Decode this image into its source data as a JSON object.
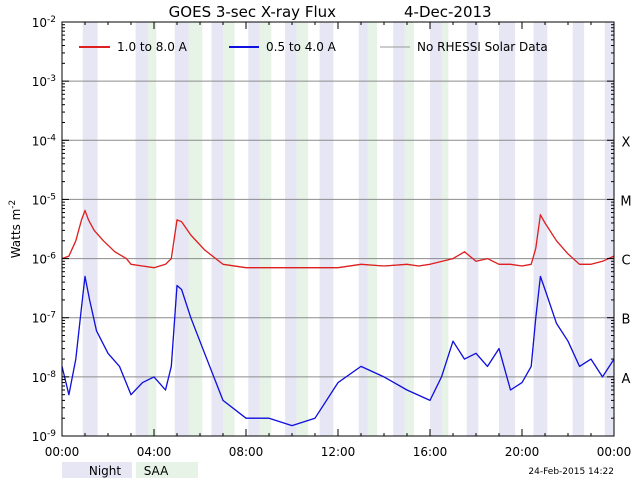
{
  "chart_data": {
    "type": "line",
    "title": "GOES 3-sec X-ray Flux",
    "date": "4-Dec-2013",
    "ylabel": "Watts m",
    "ylabel_sup": "-2",
    "y_scale": "log",
    "ylim": [
      1e-09,
      0.01
    ],
    "y_tick_labels": [
      {
        "base": "10",
        "exp": "-2"
      },
      {
        "base": "10",
        "exp": "-3"
      },
      {
        "base": "10",
        "exp": "-4"
      },
      {
        "base": "10",
        "exp": "-5"
      },
      {
        "base": "10",
        "exp": "-6"
      },
      {
        "base": "10",
        "exp": "-7"
      },
      {
        "base": "10",
        "exp": "-8"
      },
      {
        "base": "10",
        "exp": "-9"
      }
    ],
    "x_tick_labels": [
      "00:00",
      "04:00",
      "08:00",
      "12:00",
      "16:00",
      "20:00",
      "00:00"
    ],
    "xlim_hours": [
      0,
      24
    ],
    "class_labels": [
      {
        "label": "X",
        "flux": 0.0001
      },
      {
        "label": "M",
        "flux": 1e-05
      },
      {
        "label": "C",
        "flux": 1e-06
      },
      {
        "label": "B",
        "flux": 1e-07
      },
      {
        "label": "A",
        "flux": 1e-08
      }
    ],
    "grid": "horizontal at each decade",
    "legend_position": "top",
    "legend": [
      {
        "name": "1.0 to 8.0 A",
        "color": "#e02020"
      },
      {
        "name": "0.5 to 4.0 A",
        "color": "#1010e0"
      },
      {
        "name": "No RHESSI Solar Data",
        "color": "#999999"
      }
    ],
    "shading_legend": [
      {
        "name": "Night",
        "color": "#e6e6f5"
      },
      {
        "name": "SAA",
        "color": "#e6f3e6"
      }
    ],
    "night_intervals_hours": [
      [
        0.9,
        1.55
      ],
      [
        3.2,
        3.75
      ],
      [
        4.9,
        5.5
      ],
      [
        6.5,
        7.0
      ],
      [
        8.1,
        8.6
      ],
      [
        9.7,
        10.2
      ],
      [
        11.2,
        11.8
      ],
      [
        12.9,
        13.3
      ],
      [
        14.4,
        14.9
      ],
      [
        16.0,
        16.5
      ],
      [
        17.6,
        18.1
      ],
      [
        19.0,
        19.7
      ],
      [
        20.5,
        21.1
      ],
      [
        22.2,
        22.7
      ],
      [
        23.6,
        24.0
      ]
    ],
    "saa_intervals_hours": [
      [
        3.75,
        4.1
      ],
      [
        5.5,
        6.1
      ],
      [
        7.0,
        7.5
      ],
      [
        8.6,
        9.1
      ],
      [
        10.2,
        10.7
      ],
      [
        13.3,
        13.7
      ],
      [
        14.9,
        15.3
      ],
      [
        16.5,
        16.8
      ]
    ],
    "series": [
      {
        "name": "1.0 to 8.0 A",
        "color": "#e02020",
        "x_hours": [
          0.0,
          0.3,
          0.6,
          0.85,
          1.0,
          1.15,
          1.4,
          1.8,
          2.3,
          2.8,
          3.0,
          3.5,
          4.0,
          4.5,
          4.75,
          5.0,
          5.2,
          5.6,
          6.2,
          7.0,
          8.0,
          9.0,
          10.0,
          11.0,
          12.0,
          13.0,
          14.0,
          15.0,
          15.5,
          16.0,
          17.0,
          17.5,
          18.0,
          18.5,
          19.0,
          19.5,
          20.0,
          20.4,
          20.6,
          20.8,
          21.0,
          21.5,
          22.0,
          22.5,
          23.0,
          23.5,
          24.0
        ],
        "y_flux": [
          1e-06,
          1.1e-06,
          2e-06,
          4.5e-06,
          6.5e-06,
          4.5e-06,
          3e-06,
          2e-06,
          1.3e-06,
          1e-06,
          8e-07,
          7.5e-07,
          7e-07,
          8e-07,
          1e-06,
          4.5e-06,
          4.2e-06,
          2.5e-06,
          1.4e-06,
          8e-07,
          7e-07,
          7e-07,
          7e-07,
          7e-07,
          7e-07,
          8e-07,
          7.5e-07,
          8e-07,
          7.5e-07,
          8e-07,
          1e-06,
          1.3e-06,
          9e-07,
          1e-06,
          8e-07,
          8e-07,
          7.5e-07,
          8e-07,
          1.5e-06,
          5.5e-06,
          4e-06,
          2e-06,
          1.2e-06,
          8e-07,
          8e-07,
          9e-07,
          1.1e-06
        ]
      },
      {
        "name": "0.5 to 4.0 A",
        "color": "#1010e0",
        "x_hours": [
          0.0,
          0.3,
          0.6,
          0.85,
          1.0,
          1.2,
          1.5,
          2.0,
          2.5,
          3.0,
          3.5,
          4.0,
          4.5,
          4.75,
          5.0,
          5.2,
          5.6,
          6.2,
          7.0,
          8.0,
          9.0,
          10.0,
          11.0,
          12.0,
          13.0,
          14.0,
          15.0,
          16.0,
          16.5,
          17.0,
          17.5,
          18.0,
          18.5,
          19.0,
          19.5,
          20.0,
          20.4,
          20.6,
          20.8,
          21.0,
          21.5,
          22.0,
          22.5,
          23.0,
          23.5,
          24.0
        ],
        "y_flux": [
          1.5e-08,
          5e-09,
          2e-08,
          1.5e-07,
          5e-07,
          2e-07,
          6e-08,
          2.5e-08,
          1.5e-08,
          5e-09,
          8e-09,
          1e-08,
          6e-09,
          1.5e-08,
          3.5e-07,
          3e-07,
          1e-07,
          2.5e-08,
          4e-09,
          2e-09,
          2e-09,
          1.5e-09,
          2e-09,
          8e-09,
          1.5e-08,
          1e-08,
          6e-09,
          4e-09,
          1e-08,
          4e-08,
          2e-08,
          2.5e-08,
          1.5e-08,
          3e-08,
          6e-09,
          8e-09,
          1.5e-08,
          1e-07,
          5e-07,
          3e-07,
          8e-08,
          4e-08,
          1.5e-08,
          2e-08,
          1e-08,
          2e-08
        ]
      }
    ]
  },
  "footer": {
    "timestamp": "24-Feb-2015 14:22"
  }
}
